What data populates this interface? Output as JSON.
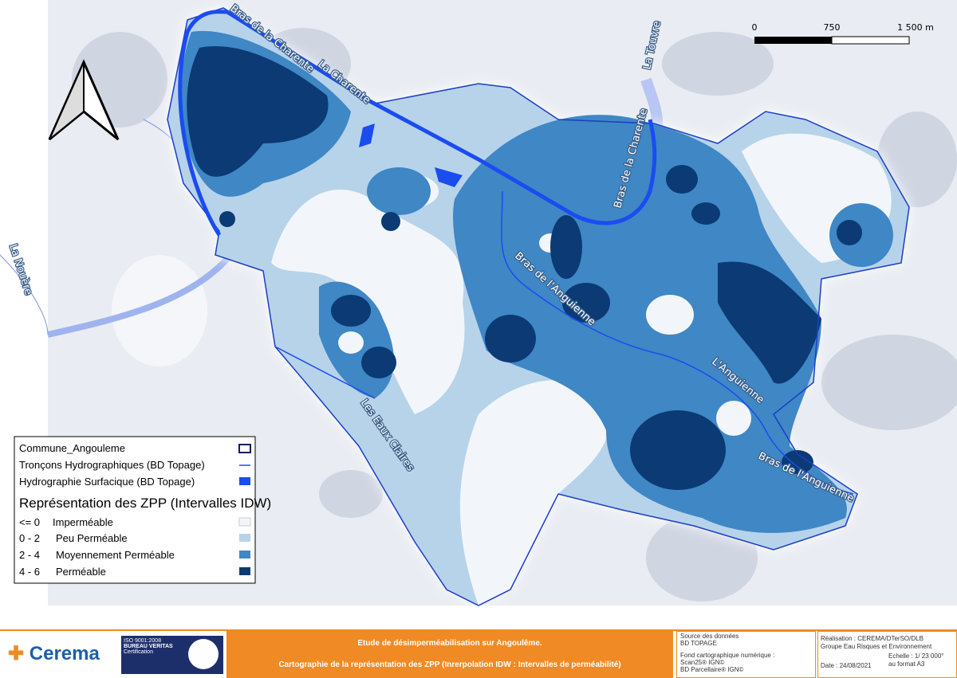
{
  "map": {
    "labels": [
      "Bras de la Charente",
      "La Charente",
      "La Touvre",
      "Bras de la Charente",
      "La Nouère",
      "Bras de l'Anguienne",
      "L'Anguienne",
      "Bras de l'Anguienne",
      "Les Eaux Claires"
    ],
    "scale_bar": [
      "0",
      "750",
      "1 500 m"
    ]
  },
  "legend": {
    "items": [
      "Commune_Angouleme",
      "Tronçons Hydrographiques (BD Topage)",
      "Hydrographie Surfacique (BD Topage)"
    ],
    "zpp_title": "Représentation des ZPP (Intervalles IDW)",
    "classes": [
      {
        "range": "<= 0",
        "label": "Imperméable"
      },
      {
        "range": "0 - 2",
        "label": "Peu Perméable"
      },
      {
        "range": "2 - 4",
        "label": "Moyennement Perméable"
      },
      {
        "range": "4 - 6",
        "label": "Perméable"
      }
    ]
  },
  "footer": {
    "logo": "Cerema",
    "certification": [
      "ISO 9001:2008",
      "BUREAU VERITAS",
      "Certification"
    ],
    "title": "Etude de désimperméabilisation sur Angoulême.",
    "subtitle": "Cartographie de la représentation des ZPP (Inrerpolation IDW : Intervalles de perméabilité)",
    "sources": [
      "Source des données",
      "BD TOPAGE",
      "Fond cartographique numérique :",
      "Scan25® IGN©",
      "BD Parcellaire® IGN©"
    ],
    "realisation": [
      "Réalisation : CEREMA/DTerSO/DLB",
      "Groupe Eau Risques et Environnement"
    ],
    "date": "Date : 24/08/2021",
    "scale": [
      "Echelle : 1/ 23 000°",
      "au format A3"
    ]
  }
}
